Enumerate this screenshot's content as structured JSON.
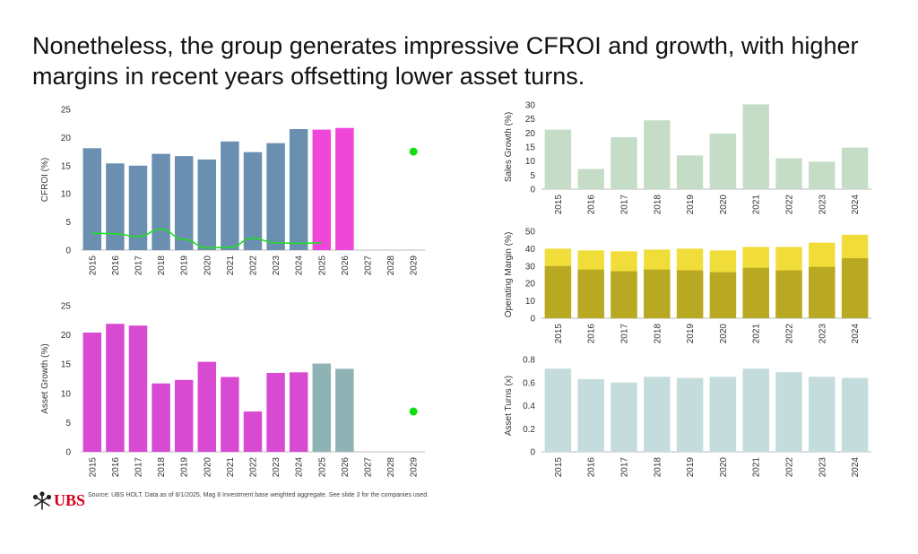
{
  "headline": {
    "line1": "Nonetheless, the group generates impressive CFROI and growth, with higher",
    "line2": "margins in recent years offsetting lower asset turns."
  },
  "footer": {
    "brand": "UBS",
    "source": "Source: UBS HOLT. Data as of 8/1/2025. Mag 8 Investment base weighted aggregate. See slide 3 for the companies used."
  },
  "colors": {
    "historical_blue": "#6a8fb0",
    "forecast_magenta": "#f046d9",
    "asset_growth_magenta": "#d94ad3",
    "forecast_teal": "#8fb3b5",
    "cfroi_line": "#22dd22",
    "dot": "#11dd11",
    "sales_green": "#c5ddc7",
    "margin_light": "#f0dd3a",
    "margin_dark": "#b9a822",
    "turns_blue": "#c4dcdc"
  },
  "chart_data": [
    {
      "id": "cfroi",
      "type": "bar",
      "ylabel": "CFROI (%)",
      "ylim": [
        0,
        25
      ],
      "yticks": [
        "0",
        "5",
        "10",
        "15",
        "20",
        "25"
      ],
      "categories": [
        "2015",
        "2016",
        "2017",
        "2018",
        "2019",
        "2020",
        "2021",
        "2022",
        "2023",
        "2024",
        "2025",
        "2026",
        "2027",
        "2028",
        "2029"
      ],
      "series": [
        {
          "values": [
            18.1,
            15.4,
            15.0,
            17.1,
            16.7,
            16.1,
            19.3,
            17.4,
            19.0,
            21.5,
            21.4,
            21.7,
            null,
            null,
            null
          ]
        },
        {
          "type": "line",
          "values": [
            3.0,
            2.9,
            2.4,
            3.7,
            1.9,
            0.4,
            0.5,
            2.1,
            1.3,
            1.2,
            1.3,
            null,
            null,
            null,
            null
          ]
        },
        {
          "type": "point",
          "values": [
            null,
            null,
            null,
            null,
            null,
            null,
            null,
            null,
            null,
            null,
            null,
            null,
            null,
            null,
            17.5
          ]
        }
      ]
    },
    {
      "id": "asset_growth",
      "type": "bar",
      "ylabel": "Asset Growth (%)",
      "ylim": [
        0,
        25
      ],
      "yticks": [
        "0",
        "5",
        "10",
        "15",
        "20",
        "25"
      ],
      "categories": [
        "2015",
        "2016",
        "2017",
        "2018",
        "2019",
        "2020",
        "2021",
        "2022",
        "2023",
        "2024",
        "2025",
        "2026",
        "2027",
        "2028",
        "2029"
      ],
      "series": [
        {
          "values": [
            20.4,
            21.9,
            21.6,
            11.7,
            12.3,
            15.4,
            12.8,
            6.9,
            13.5,
            13.6,
            15.1,
            14.2,
            null,
            null,
            null
          ]
        },
        {
          "type": "point",
          "values": [
            null,
            null,
            null,
            null,
            null,
            null,
            null,
            null,
            null,
            null,
            null,
            null,
            null,
            null,
            6.9
          ]
        }
      ]
    },
    {
      "id": "sales_growth",
      "type": "bar",
      "ylabel": "Sales Growth (%)",
      "ylim": [
        0,
        30
      ],
      "yticks": [
        "0",
        "5",
        "10",
        "15",
        "20",
        "25",
        "30"
      ],
      "categories": [
        "2015",
        "2016",
        "2017",
        "2018",
        "2019",
        "2020",
        "2021",
        "2022",
        "2023",
        "2024"
      ],
      "series": [
        {
          "values": [
            21.2,
            7.2,
            18.5,
            24.5,
            12.0,
            19.8,
            30.2,
            11.0,
            9.8,
            14.8
          ]
        }
      ]
    },
    {
      "id": "operating_margin",
      "type": "bar",
      "ylabel": "Operating Margin (%)",
      "ylim": [
        0,
        50
      ],
      "yticks": [
        "0",
        "10",
        "20",
        "30",
        "40",
        "50"
      ],
      "categories": [
        "2015",
        "2016",
        "2017",
        "2018",
        "2019",
        "2020",
        "2021",
        "2022",
        "2023",
        "2024"
      ],
      "series": [
        {
          "values": [
            40.0,
            39.0,
            38.5,
            39.5,
            40.0,
            39.0,
            41.0,
            41.0,
            43.5,
            48.0
          ]
        },
        {
          "values": [
            30.0,
            28.0,
            27.0,
            28.0,
            27.5,
            26.5,
            29.0,
            27.5,
            29.5,
            34.5
          ]
        }
      ]
    },
    {
      "id": "asset_turns",
      "type": "bar",
      "ylabel": "Asset Turns (x)",
      "ylim": [
        0,
        0.8
      ],
      "yticks": [
        "0",
        "0.2",
        "0.4",
        "0.6",
        "0.8"
      ],
      "categories": [
        "2015",
        "2016",
        "2017",
        "2018",
        "2019",
        "2020",
        "2021",
        "2022",
        "2023",
        "2024"
      ],
      "series": [
        {
          "values": [
            0.72,
            0.63,
            0.6,
            0.65,
            0.64,
            0.65,
            0.72,
            0.69,
            0.65,
            0.64
          ]
        }
      ]
    }
  ]
}
